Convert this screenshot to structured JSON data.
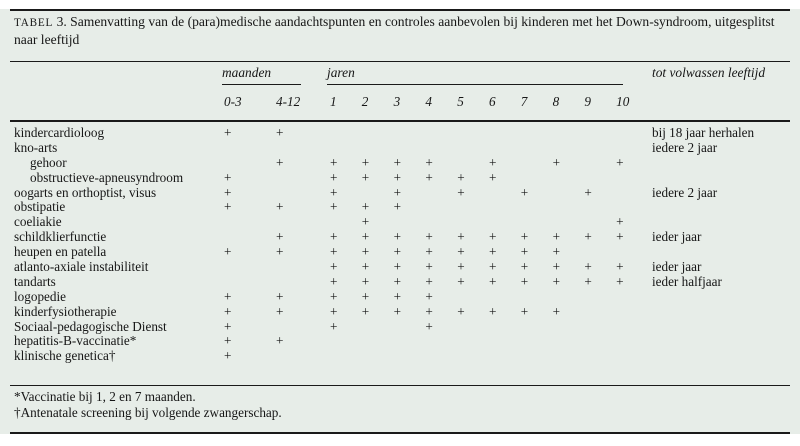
{
  "title": {
    "label": "TABEL",
    "number": "3.",
    "text": "Samenvatting van de (para)medische aandachtspunten en controles aanbevolen bij kinderen met het Down-syndroom, uitgesplitst naar leeftijd"
  },
  "colors": {
    "table_background": "#e7ede8",
    "rule": "#1a1a1a",
    "text": "#161616"
  },
  "header": {
    "group_months": "maanden",
    "group_years": "jaren",
    "group_adult": "tot volwassen leeftijd",
    "columns": [
      "0-3",
      "4-12",
      "1",
      "2",
      "3",
      "4",
      "5",
      "6",
      "7",
      "8",
      "9",
      "10"
    ]
  },
  "mark_symbol": "+",
  "rows": [
    {
      "label": "kindercardioloog",
      "indent": false,
      "marks": [
        "+",
        "+",
        "",
        "",
        "",
        "",
        "",
        "",
        "",
        "",
        "",
        ""
      ],
      "note": "bij 18 jaar herhalen"
    },
    {
      "label": "kno-arts",
      "indent": false,
      "marks": [
        "",
        "",
        "",
        "",
        "",
        "",
        "",
        "",
        "",
        "",
        "",
        ""
      ],
      "note": "iedere 2 jaar"
    },
    {
      "label": "gehoor",
      "indent": true,
      "marks": [
        "",
        "+",
        "+",
        "+",
        "+",
        "+",
        "",
        "+",
        "",
        "+",
        "",
        "+"
      ],
      "note": ""
    },
    {
      "label": "obstructieve-apneusyndroom",
      "indent": true,
      "marks": [
        "+",
        "",
        "+",
        "+",
        "+",
        "+",
        "+",
        "+",
        "",
        "",
        "",
        ""
      ],
      "note": ""
    },
    {
      "label": "oogarts en orthoptist, visus",
      "indent": false,
      "marks": [
        "+",
        "",
        "+",
        "",
        "+",
        "",
        "+",
        "",
        "+",
        "",
        "+",
        ""
      ],
      "note": "iedere 2 jaar"
    },
    {
      "label": "obstipatie",
      "indent": false,
      "marks": [
        "+",
        "+",
        "+",
        "+",
        "+",
        "",
        "",
        "",
        "",
        "",
        "",
        ""
      ],
      "note": ""
    },
    {
      "label": "coeliakie",
      "indent": false,
      "marks": [
        "",
        "",
        "",
        "+",
        "",
        "",
        "",
        "",
        "",
        "",
        "",
        "+"
      ],
      "note": ""
    },
    {
      "label": "schildklierfunctie",
      "indent": false,
      "marks": [
        "",
        "+",
        "+",
        "+",
        "+",
        "+",
        "+",
        "+",
        "+",
        "+",
        "+",
        "+"
      ],
      "note": "ieder jaar"
    },
    {
      "label": "heupen en patella",
      "indent": false,
      "marks": [
        "+",
        "+",
        "+",
        "+",
        "+",
        "+",
        "+",
        "+",
        "+",
        "+",
        "",
        ""
      ],
      "note": ""
    },
    {
      "label": "atlanto-axiale instabiliteit",
      "indent": false,
      "marks": [
        "",
        "",
        "+",
        "+",
        "+",
        "+",
        "+",
        "+",
        "+",
        "+",
        "+",
        "+"
      ],
      "note": "ieder jaar"
    },
    {
      "label": "tandarts",
      "indent": false,
      "marks": [
        "",
        "",
        "+",
        "+",
        "+",
        "+",
        "+",
        "+",
        "+",
        "+",
        "+",
        "+"
      ],
      "note": "ieder halfjaar"
    },
    {
      "label": "logopedie",
      "indent": false,
      "marks": [
        "+",
        "+",
        "+",
        "+",
        "+",
        "+",
        "",
        "",
        "",
        "",
        "",
        ""
      ],
      "note": ""
    },
    {
      "label": "kinderfysiotherapie",
      "indent": false,
      "marks": [
        "+",
        "+",
        "+",
        "+",
        "+",
        "+",
        "+",
        "+",
        "+",
        "+",
        "",
        ""
      ],
      "note": ""
    },
    {
      "label": "Sociaal-pedagogische Dienst",
      "indent": false,
      "marks": [
        "+",
        "",
        "+",
        "",
        "",
        "+",
        "",
        "",
        "",
        "",
        "",
        ""
      ],
      "note": ""
    },
    {
      "label": "hepatitis-B-vaccinatie*",
      "indent": false,
      "marks": [
        "+",
        "+",
        "",
        "",
        "",
        "",
        "",
        "",
        "",
        "",
        "",
        ""
      ],
      "note": ""
    },
    {
      "label": "klinische genetica†",
      "indent": false,
      "marks": [
        "+",
        "",
        "",
        "",
        "",
        "",
        "",
        "",
        "",
        "",
        "",
        ""
      ],
      "note": ""
    }
  ],
  "footnotes": [
    "*Vaccinatie bij 1, 2 en 7 maanden.",
    "†Antenatale screening bij volgende zwangerschap."
  ]
}
